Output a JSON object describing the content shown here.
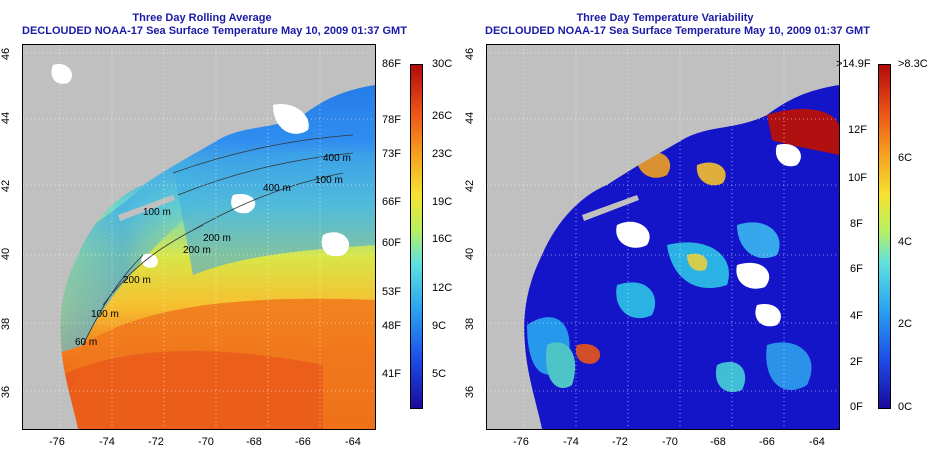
{
  "left_panel": {
    "title_line1": "Three Day Rolling Average",
    "title_line2": "DECLOUDED NOAA-17 Sea Surface Temperature May 10, 2009 01:37 GMT",
    "lon_ticks": [
      "-76",
      "-74",
      "-72",
      "-70",
      "-68",
      "-66",
      "-64"
    ],
    "lat_ticks": [
      "46",
      "44",
      "42",
      "40",
      "38",
      "36"
    ],
    "contours": [
      "100 m",
      "200 m",
      "400 m",
      "100 m",
      "200 m",
      "400 m",
      "200 m",
      "100 m",
      "60 m"
    ],
    "colorbar": {
      "fahrenheit": [
        "86F",
        "78F",
        "73F",
        "66F",
        "60F",
        "53F",
        "48F",
        "41F"
      ],
      "celsius": [
        "30C",
        "26C",
        "23C",
        "19C",
        "16C",
        "12C",
        "9C",
        "5C"
      ]
    }
  },
  "right_panel": {
    "title_line1": "Three Day Temperature Variability",
    "title_line2": "DECLOUDED NOAA-17 Sea Surface Temperature May 10, 2009 01:37 GMT",
    "lon_ticks": [
      "-76",
      "-74",
      "-72",
      "-70",
      "-68",
      "-66",
      "-64"
    ],
    "lat_ticks": [
      "46",
      "44",
      "42",
      "40",
      "38",
      "36"
    ],
    "colorbar": {
      "fahrenheit": [
        ">14.9F",
        "12F",
        "10F",
        "8F",
        "6F",
        "4F",
        "2F",
        "0F"
      ],
      "celsius": [
        ">8.3C",
        "6C",
        "4C",
        "2C",
        "0C"
      ]
    }
  },
  "colors": {
    "land": "#c0c0c0",
    "title": "#1a1aa6",
    "cloud": "#ffffff"
  }
}
